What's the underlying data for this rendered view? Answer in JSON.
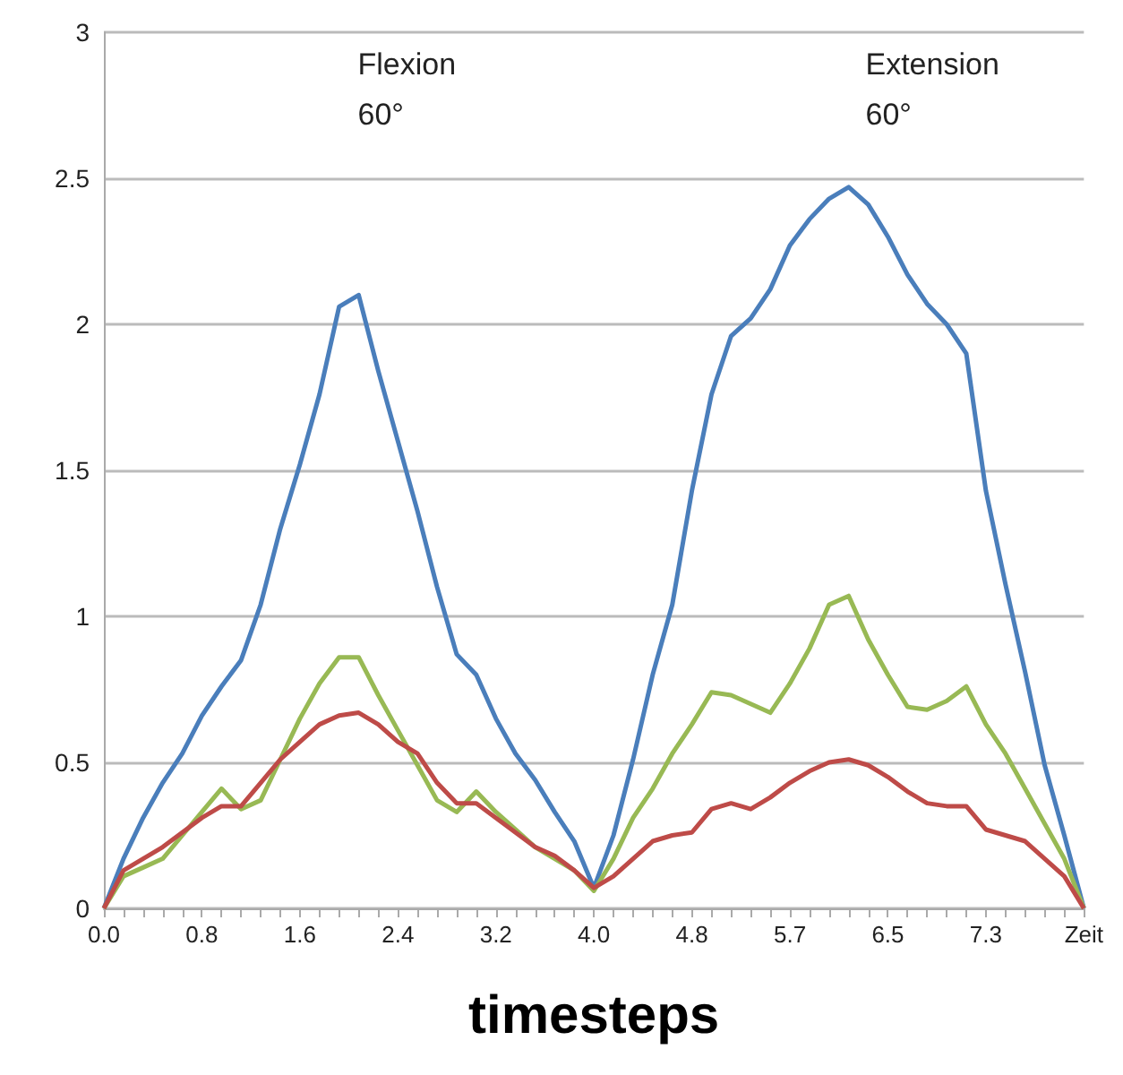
{
  "chart_data": {
    "type": "line",
    "xlabel": "timesteps",
    "categories": [
      "0.0",
      null,
      null,
      null,
      null,
      "0.8",
      null,
      null,
      null,
      null,
      "1.6",
      null,
      null,
      null,
      null,
      "2.4",
      null,
      null,
      null,
      null,
      "3.2",
      null,
      null,
      null,
      null,
      "4.0",
      null,
      null,
      null,
      null,
      "4.8",
      null,
      null,
      null,
      null,
      "5.7",
      null,
      null,
      null,
      null,
      "6.5",
      null,
      null,
      null,
      null,
      "7.3",
      null,
      null,
      null,
      null,
      "Zeit"
    ],
    "series": [
      {
        "color": "#4a7ebb",
        "values": [
          0,
          0.17,
          0.31,
          0.43,
          0.53,
          0.66,
          0.76,
          0.85,
          1.04,
          1.3,
          1.52,
          1.76,
          2.06,
          2.1,
          1.84,
          1.6,
          1.36,
          1.1,
          0.87,
          0.8,
          0.65,
          0.53,
          0.44,
          0.33,
          0.23,
          0.07,
          0.25,
          0.51,
          0.8,
          1.04,
          1.43,
          1.76,
          1.96,
          2.02,
          2.12,
          2.27,
          2.36,
          2.43,
          2.47,
          2.41,
          2.3,
          2.17,
          2.07,
          2,
          1.9,
          1.43,
          1.11,
          0.81,
          0.49,
          0.25,
          0
        ]
      },
      {
        "color": "#98b954",
        "values": [
          0,
          0.11,
          0.14,
          0.17,
          0.25,
          0.33,
          0.41,
          0.34,
          0.37,
          0.51,
          0.65,
          0.77,
          0.86,
          0.86,
          0.73,
          0.61,
          0.49,
          0.37,
          0.33,
          0.4,
          0.33,
          0.27,
          0.21,
          0.17,
          0.13,
          0.06,
          0.17,
          0.31,
          0.41,
          0.53,
          0.63,
          0.74,
          0.73,
          0.7,
          0.67,
          0.77,
          0.89,
          1.04,
          1.07,
          0.92,
          0.8,
          0.69,
          0.68,
          0.71,
          0.76,
          0.63,
          0.53,
          0.41,
          0.29,
          0.17,
          0
        ]
      },
      {
        "color": "#be4b48",
        "values": [
          0,
          0.13,
          0.17,
          0.21,
          0.26,
          0.31,
          0.35,
          0.35,
          0.43,
          0.51,
          0.57,
          0.63,
          0.66,
          0.67,
          0.63,
          0.57,
          0.53,
          0.43,
          0.36,
          0.36,
          0.31,
          0.26,
          0.21,
          0.18,
          0.13,
          0.07,
          0.11,
          0.17,
          0.23,
          0.25,
          0.26,
          0.34,
          0.36,
          0.34,
          0.38,
          0.43,
          0.47,
          0.5,
          0.51,
          0.49,
          0.45,
          0.4,
          0.36,
          0.35,
          0.35,
          0.27,
          0.25,
          0.23,
          0.17,
          0.11,
          0
        ]
      }
    ],
    "ylim": [
      0,
      3
    ],
    "yticks": [
      0,
      0.5,
      1,
      1.5,
      2,
      2.5,
      3
    ],
    "grid": "y",
    "marker": "none",
    "line_style": "solid",
    "annotations": [
      "Flexion\n60°",
      "Extension\n60°"
    ]
  }
}
